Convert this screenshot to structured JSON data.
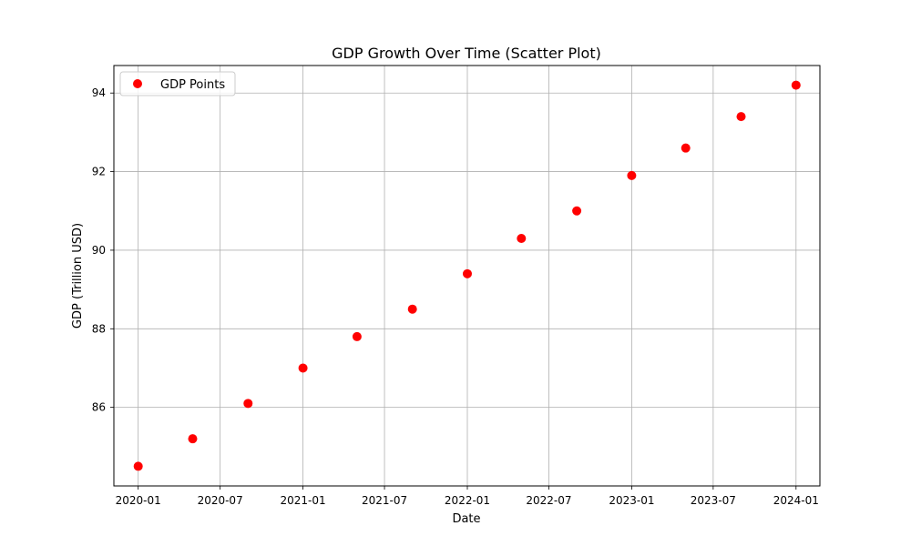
{
  "chart_data": {
    "type": "scatter",
    "title": "GDP Growth Over Time (Scatter Plot)",
    "xlabel": "Date",
    "ylabel": "GDP (Trillion USD)",
    "x_ticks": [
      "2020-01",
      "2020-07",
      "2021-01",
      "2021-07",
      "2022-01",
      "2022-07",
      "2023-01",
      "2023-07",
      "2024-01"
    ],
    "y_ticks": [
      86,
      88,
      90,
      92,
      94
    ],
    "xlim": [
      "2019-11-08",
      "2024-02-23"
    ],
    "ylim": [
      84.0,
      94.7
    ],
    "grid": true,
    "legend_position": "upper-left",
    "series": [
      {
        "name": "GDP Points",
        "color": "#ff0000",
        "marker": "circle",
        "points": [
          {
            "x": "2020-01-01",
            "y": 84.5
          },
          {
            "x": "2020-05-01",
            "y": 85.2
          },
          {
            "x": "2020-09-01",
            "y": 86.1
          },
          {
            "x": "2021-01-01",
            "y": 87.0
          },
          {
            "x": "2021-05-01",
            "y": 87.8
          },
          {
            "x": "2021-09-01",
            "y": 88.5
          },
          {
            "x": "2022-01-01",
            "y": 89.4
          },
          {
            "x": "2022-05-01",
            "y": 90.3
          },
          {
            "x": "2022-09-01",
            "y": 91.0
          },
          {
            "x": "2023-01-01",
            "y": 91.9
          },
          {
            "x": "2023-05-01",
            "y": 92.6
          },
          {
            "x": "2023-09-01",
            "y": 93.4
          },
          {
            "x": "2024-01-01",
            "y": 94.2
          }
        ]
      }
    ]
  }
}
